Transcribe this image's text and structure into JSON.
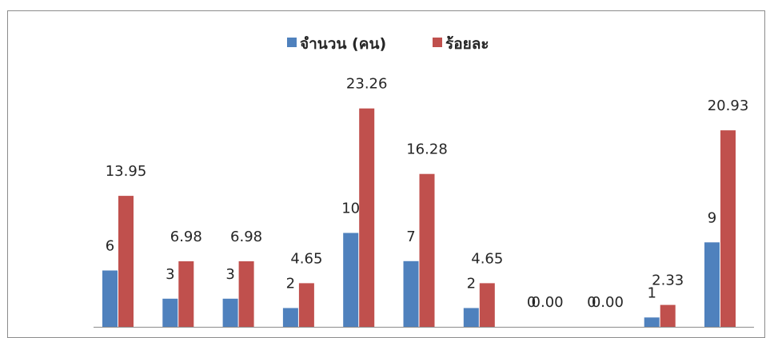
{
  "chart_data": {
    "type": "bar",
    "categories": [
      "",
      "",
      "",
      "",
      "",
      "",
      "",
      "",
      "",
      "",
      ""
    ],
    "series": [
      {
        "name": "จำนวน (คน)",
        "color": "#4f81bd",
        "values": [
          6,
          3,
          3,
          2,
          10,
          7,
          2,
          0,
          0,
          1,
          9
        ],
        "labels": [
          "6",
          "3",
          "3",
          "2",
          "10",
          "7",
          "2",
          "0",
          "0",
          "1",
          "9"
        ]
      },
      {
        "name": "ร้อยละ",
        "color": "#c0504d",
        "values": [
          13.95,
          6.98,
          6.98,
          4.65,
          23.26,
          16.28,
          4.65,
          0.0,
          0.0,
          2.33,
          20.93
        ],
        "labels": [
          "13.95",
          "6.98",
          "6.98",
          "4.65",
          "23.26",
          "16.28",
          "4.65",
          "0.00",
          "0.00",
          "2.33",
          "20.93"
        ]
      }
    ],
    "legend": "top-center",
    "grid": false,
    "ylim": [
      0,
      25
    ]
  }
}
